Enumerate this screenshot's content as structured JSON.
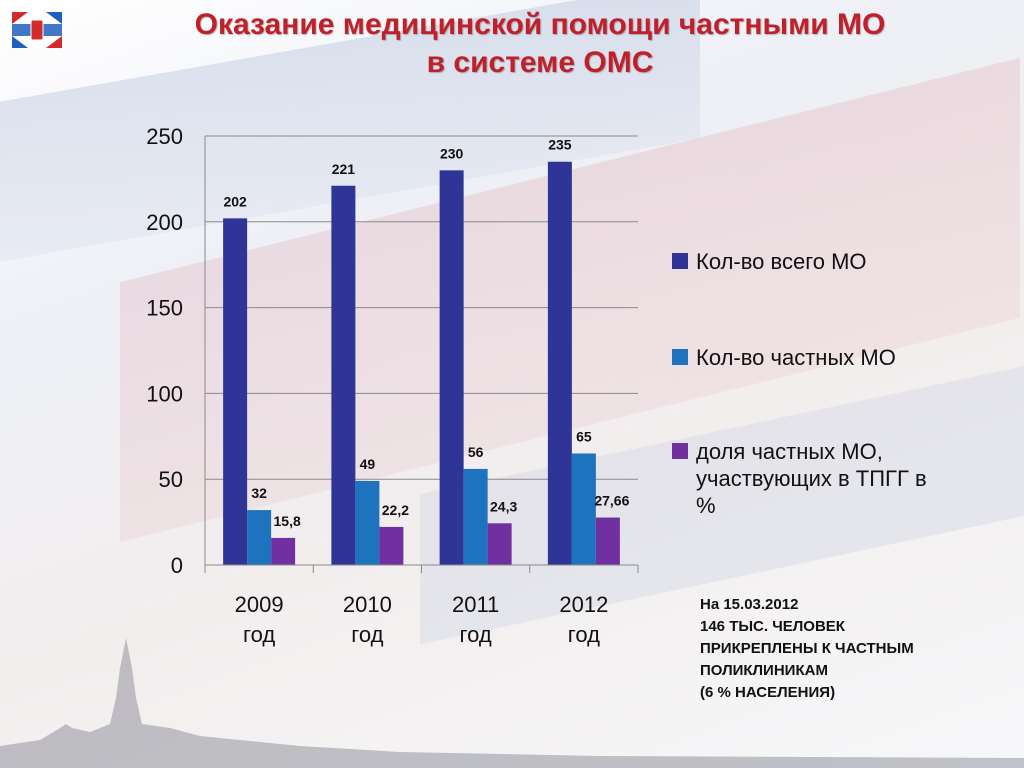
{
  "title": {
    "line1": "Оказание медицинской помощи частными МО",
    "line2": "в системе ОМС"
  },
  "colors": {
    "title": "#c0202a",
    "series_total": "#2f3596",
    "series_private": "#1e73be",
    "series_share": "#7030a0"
  },
  "chart_data": {
    "type": "bar",
    "categories": [
      [
        "2009",
        "год"
      ],
      [
        "2010",
        "год"
      ],
      [
        "2011",
        "год"
      ],
      [
        "2012",
        "год"
      ]
    ],
    "series": [
      {
        "name": "Кол-во всего МО",
        "values": [
          202,
          221,
          230,
          235
        ],
        "labels": [
          "202",
          "221",
          "230",
          "235"
        ],
        "color": "#2f3596"
      },
      {
        "name": "Кол-во частных МО",
        "values": [
          32,
          49,
          56,
          65
        ],
        "labels": [
          "32",
          "49",
          "56",
          "65"
        ],
        "color": "#1e73be"
      },
      {
        "name": "доля частных МО, участвующих в ТПГГ в %",
        "values": [
          15.8,
          22.2,
          24.3,
          27.66
        ],
        "labels": [
          "15,8",
          "22,2",
          "24,3",
          "27,66"
        ],
        "color": "#7030a0"
      }
    ],
    "yticks": [
      "0",
      "50",
      "100",
      "150",
      "200",
      "250"
    ],
    "ylim": [
      0,
      250
    ],
    "grid": true,
    "legend_position": "right"
  },
  "legend": {
    "items": [
      {
        "label": "Кол-во всего МО"
      },
      {
        "label": "Кол-во частных МО"
      },
      {
        "label": "доля частных МО, участвующих в ТПГГ в %"
      }
    ]
  },
  "note": {
    "line1": "На 15.03.2012",
    "line2": "146 ТЫС. ЧЕЛОВЕК",
    "line3": "ПРИКРЕПЛЕНЫ К ЧАСТНЫМ",
    "line4": "ПОЛИКЛИНИКАМ",
    "line5": "(6 % НАСЕЛЕНИЯ)"
  }
}
